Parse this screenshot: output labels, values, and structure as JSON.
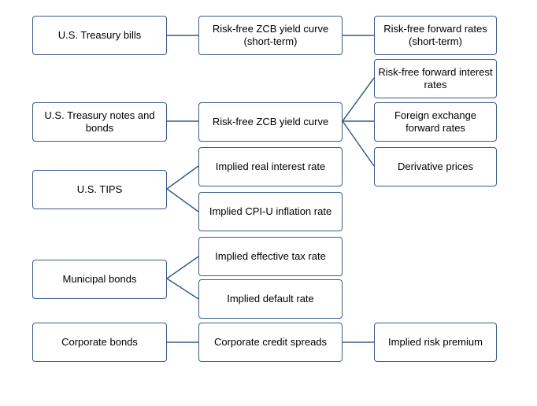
{
  "colors": {
    "border": "#3b5a8a",
    "connector": "#3b5a8a",
    "text": "#000000",
    "background": "#ffffff"
  },
  "nodes": {
    "tbills": "U.S. Treasury bills",
    "zcb_short": "Risk-free ZCB yield curve (short-term)",
    "fwd_short": "Risk-free forward rates (short-term)",
    "tnotes": "U.S. Treasury notes and bonds",
    "zcb": "Risk-free ZCB yield curve",
    "fwd_interest": "Risk-free forward interest rates",
    "fx_fwd": "Foreign exchange forward rates",
    "derivatives": "Derivative prices",
    "tips": "U.S. TIPS",
    "real_rate": "Implied real interest rate",
    "cpi": "Implied CPI-U inflation rate",
    "muni": "Municipal bonds",
    "tax_rate": "Implied effective tax rate",
    "default_rate": "Implied default rate",
    "corporate": "Corporate bonds",
    "credit_spreads": "Corporate credit spreads",
    "risk_premium": "Implied risk premium"
  }
}
